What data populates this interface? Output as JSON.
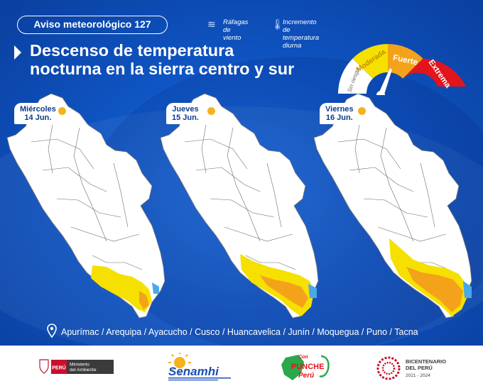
{
  "header": {
    "badge": "Aviso meteorológico 127",
    "title_line1": "Descenso de temperatura",
    "title_line2": "nocturna en la sierra centro y sur"
  },
  "legend": [
    {
      "icon": "wind-gust-icon",
      "label_line1": "Ráfagas",
      "label_line2": "de viento"
    },
    {
      "icon": "thermometer-up-icon",
      "label_line1": "Incremento de",
      "label_line2": "temperatura diurna"
    }
  ],
  "gauge": {
    "levels": [
      {
        "label": "Sin riesgo",
        "color": "#ffffff"
      },
      {
        "label": "Moderada",
        "color": "#f5e000"
      },
      {
        "label": "Fuerte",
        "color": "#f5a21b"
      },
      {
        "label": "Extrema",
        "color": "#e3141b"
      }
    ],
    "needle_level": "Fuerte"
  },
  "days": [
    {
      "weekday": "Miércoles",
      "date": "14 Jun."
    },
    {
      "weekday": "Jueves",
      "date": "15 Jun."
    },
    {
      "weekday": "Viernes",
      "date": "16 Jun."
    }
  ],
  "regions": "Apurímac / Arequipa / Ayacucho / Cusco / Huancavelica / Junín / Moquegua / Puno / Tacna",
  "footer": {
    "peru_label": "PERÚ",
    "ministry_line1": "Ministerio",
    "ministry_line2": "del Ambiente",
    "senamhi": "Senamhi",
    "punche_line1": "Con",
    "punche_line2": "PUNCHE",
    "punche_line3": "Perú",
    "bicent_line1": "BICENTENARIO",
    "bicent_line2": "DEL PERÚ",
    "bicent_line3": "2021 - 2024"
  },
  "colors": {
    "background": "#1158c7",
    "moderate": "#f5e000",
    "strong": "#f5a21b",
    "extreme": "#e3141b",
    "wind": "#4aa8e8"
  }
}
